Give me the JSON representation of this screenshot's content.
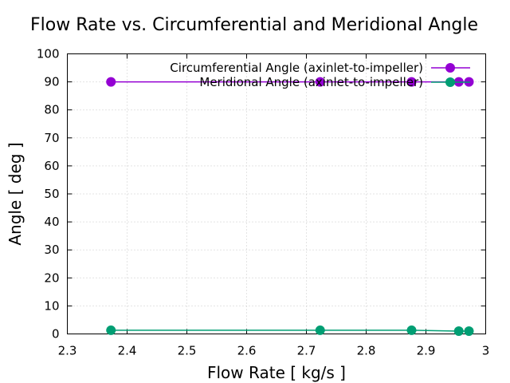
{
  "chart_data": {
    "type": "line",
    "title": "Flow Rate vs. Circumferential and Meridional Angle",
    "xlabel": "Flow Rate [ kg/s ]",
    "ylabel": "Angle [ deg ]",
    "xlim": [
      2.3,
      3.0
    ],
    "ylim": [
      0,
      100
    ],
    "xticks": [
      "2.3",
      "2.4",
      "2.5",
      "2.6",
      "2.7",
      "2.8",
      "2.9",
      "3"
    ],
    "yticks": [
      "0",
      "10",
      "20",
      "30",
      "40",
      "50",
      "60",
      "70",
      "80",
      "90",
      "100"
    ],
    "grid": true,
    "legend_position": "top-right",
    "series": [
      {
        "name": "Circumferential Angle (axinlet-to-impeller)",
        "color": "#9400d3",
        "x": [
          2.373,
          2.723,
          2.876,
          2.955,
          2.972
        ],
        "y": [
          90,
          90,
          90,
          90,
          90
        ]
      },
      {
        "name": "Meridional Angle (axinlet-to-impeller)",
        "color": "#009e73",
        "x": [
          2.373,
          2.723,
          2.876,
          2.955,
          2.972
        ],
        "y": [
          1.3,
          1.3,
          1.3,
          1.0,
          1.0
        ]
      }
    ]
  }
}
